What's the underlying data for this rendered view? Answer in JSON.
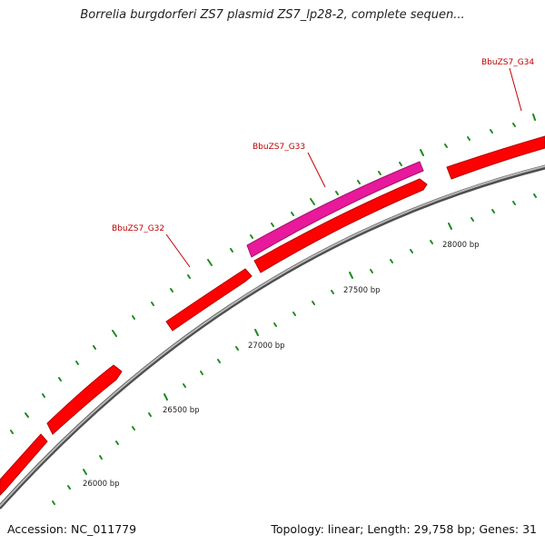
{
  "title": "Borrelia burgdorferi ZS7 plasmid ZS7_lp28-2, complete sequen...",
  "footer": {
    "accession": "Accession: NC_011779",
    "summary": "Topology: linear; Length: 29,758 bp; Genes: 31"
  },
  "colors": {
    "gene": "#ff0000",
    "gene_highlight": "#e8199a",
    "backbone": "#888888",
    "tick": "#1e8a1e",
    "label": "#c00000"
  },
  "gene_labels": [
    {
      "text": "BbuZS7_G32",
      "gene_bp": 27000
    },
    {
      "text": "BbuZS7_G33",
      "gene_bp": 27720
    },
    {
      "text": "BbuZS7_G34",
      "gene_bp": 28500
    }
  ],
  "bp_labels": [
    "26000 bp",
    "26500 bp",
    "27000 bp",
    "27500 bp",
    "28000 bp"
  ]
}
